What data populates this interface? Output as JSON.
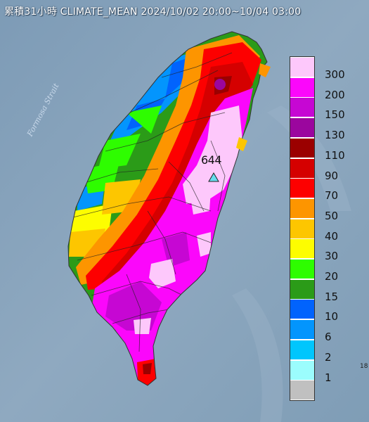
{
  "title": "累積31小時 CLIMATE_MEAN 2024/10/02 20:00~10/04 03:00",
  "strait_label": "Formosa Strait",
  "peak_value": "644",
  "edge_mark": "18",
  "legend": [
    {
      "label": "300",
      "color": "#fdc8fb"
    },
    {
      "label": "200",
      "color": "#fb07fb"
    },
    {
      "label": "150",
      "color": "#c607d3"
    },
    {
      "label": "130",
      "color": "#9b069e"
    },
    {
      "label": "110",
      "color": "#9b0000"
    },
    {
      "label": "90",
      "color": "#d50000"
    },
    {
      "label": "70",
      "color": "#fd0000"
    },
    {
      "label": "50",
      "color": "#fd9500"
    },
    {
      "label": "40",
      "color": "#fdc600"
    },
    {
      "label": "30",
      "color": "#fdfd00"
    },
    {
      "label": "20",
      "color": "#2efd00"
    },
    {
      "label": "15",
      "color": "#2b9b18"
    },
    {
      "label": "10",
      "color": "#0163fd"
    },
    {
      "label": "6",
      "color": "#0395fd"
    },
    {
      "label": "2",
      "color": "#00c6fd"
    },
    {
      "label": "1",
      "color": "#9bfdfd"
    },
    {
      "label": "",
      "color": "#c0c0c0"
    }
  ]
}
